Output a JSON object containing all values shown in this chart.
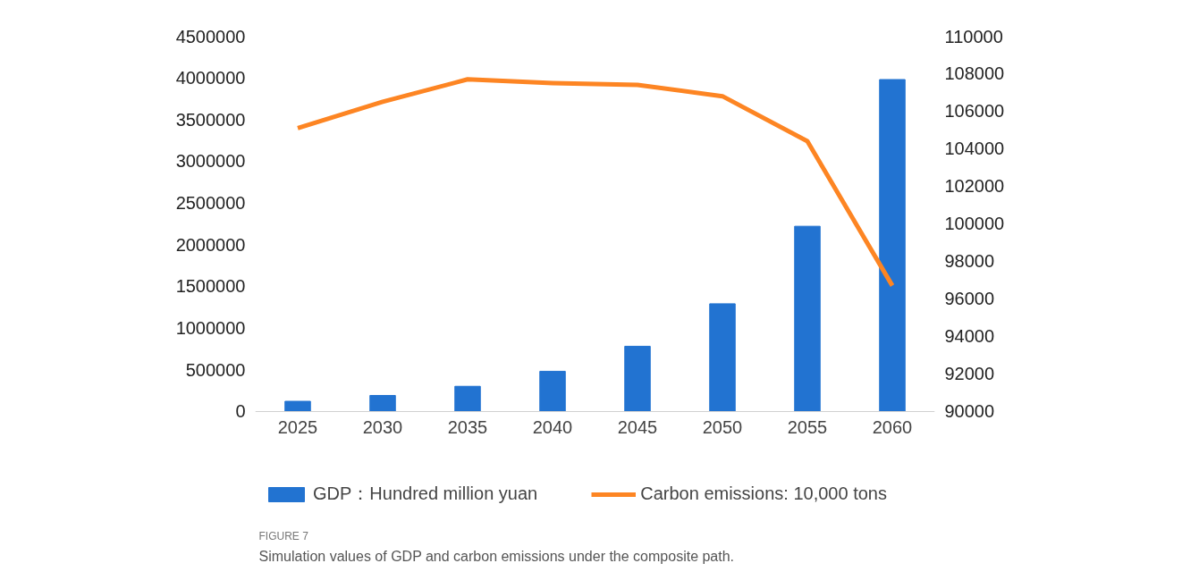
{
  "chart_data": {
    "type": "bar",
    "categories": [
      "2025",
      "2030",
      "2035",
      "2040",
      "2045",
      "2050",
      "2055",
      "2060"
    ],
    "series": [
      {
        "name": "GDP：Hundred million yuan",
        "color": "#2273d1",
        "values": [
          120000,
          190000,
          300000,
          480000,
          780000,
          1290000,
          2220000,
          3980000
        ]
      },
      {
        "name": "Carbon emissions: 10,000 tons",
        "type": "line",
        "axis": "y2",
        "color": "#fd8523",
        "values": [
          105100,
          106500,
          107700,
          107500,
          107400,
          106800,
          104400,
          96700
        ]
      }
    ],
    "ylim": [
      0,
      4500000
    ],
    "yticks": [
      0,
      500000,
      1000000,
      1500000,
      2000000,
      2500000,
      3000000,
      3500000,
      4000000,
      4500000
    ],
    "y2lim": [
      90000,
      110000
    ],
    "y2ticks": [
      90000,
      92000,
      94000,
      96000,
      98000,
      100000,
      102000,
      104000,
      106000,
      108000,
      110000
    ],
    "grid": false,
    "legend": "bottom",
    "marker": "none",
    "line_style": "solid",
    "annotations": [
      "FIGURE 7",
      "Simulation values of GDP and carbon emissions under the composite path."
    ]
  }
}
